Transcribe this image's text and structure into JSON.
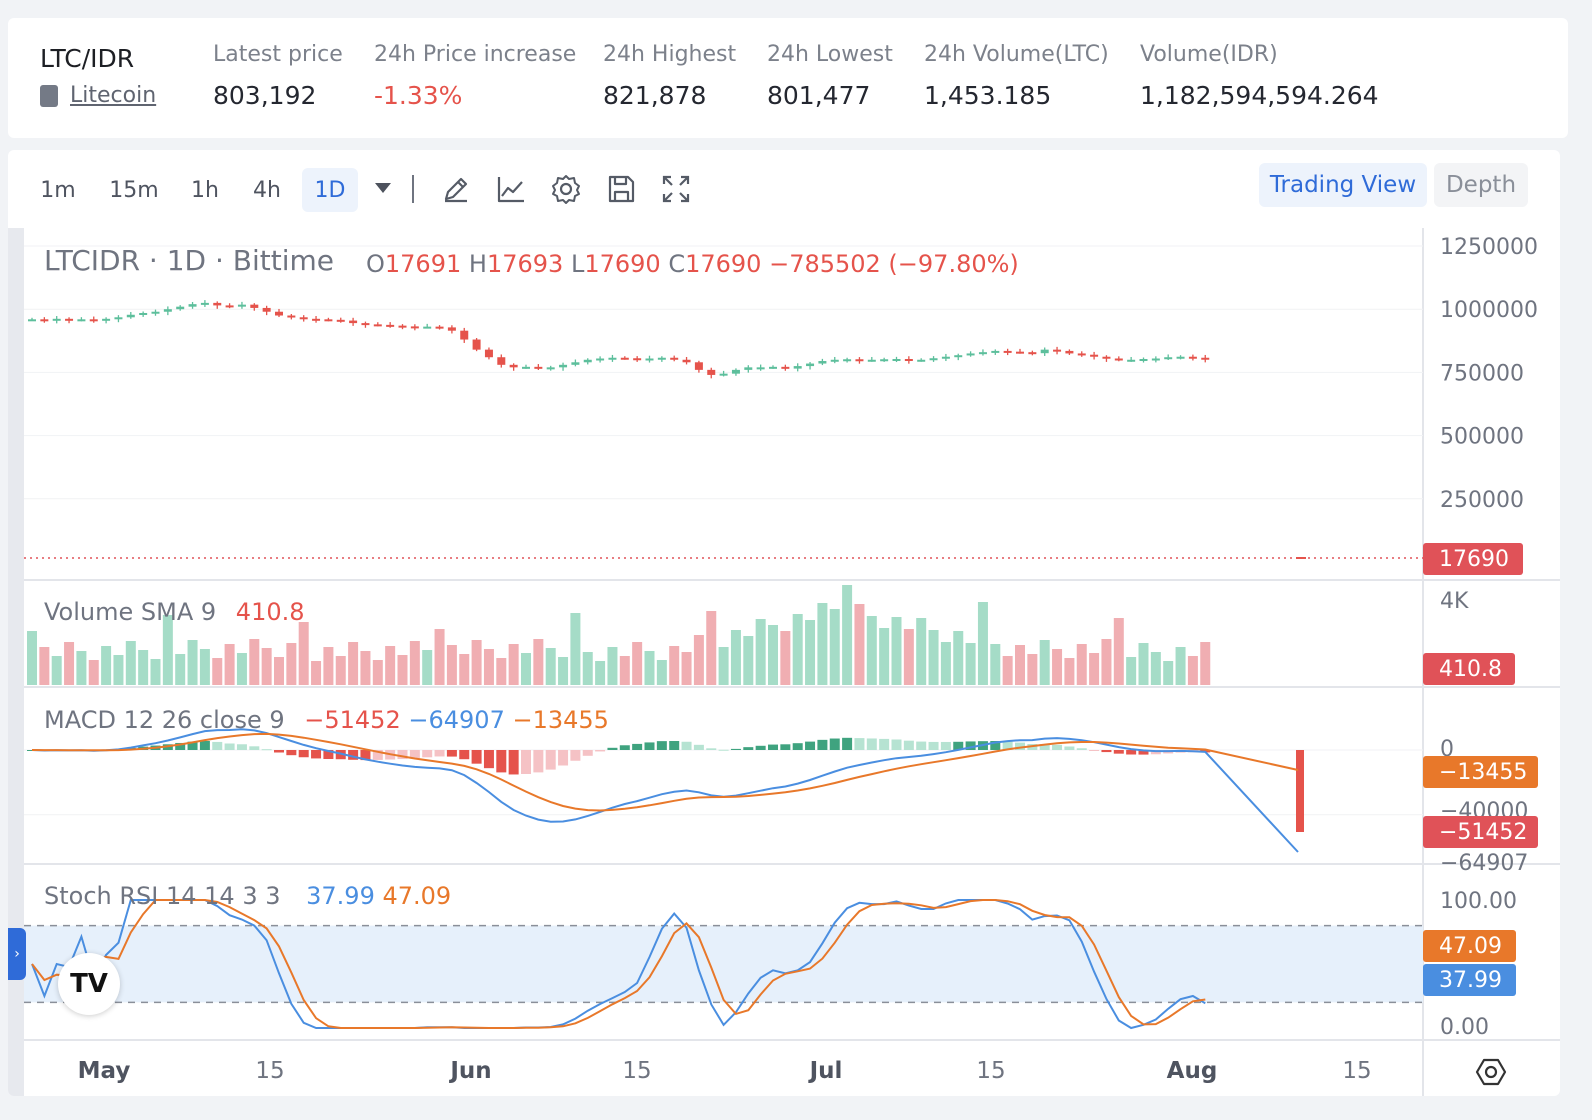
{
  "ticker": {
    "pair": "LTC/IDR",
    "coin_link": "Litecoin",
    "stats": [
      {
        "label": "Latest price",
        "value": "803,192",
        "tone": "neutral"
      },
      {
        "label": "24h Price increase",
        "value": "-1.33%",
        "tone": "down"
      },
      {
        "label": "24h Highest",
        "value": "821,878",
        "tone": "neutral"
      },
      {
        "label": "24h Lowest",
        "value": "801,477",
        "tone": "neutral"
      },
      {
        "label": "24h Volume(LTC)",
        "value": "1,453.185",
        "tone": "neutral"
      },
      {
        "label": "Volume(IDR)",
        "value": "1,182,594,594.264",
        "tone": "neutral"
      }
    ]
  },
  "toolbar": {
    "timeframes": [
      "1m",
      "15m",
      "1h",
      "4h",
      "1D"
    ],
    "active_timeframe": "1D",
    "tools": [
      "pencil-icon",
      "indicator-icon",
      "gear-icon",
      "save-icon",
      "fullscreen-icon"
    ],
    "view_buttons": [
      "Trading View",
      "Depth"
    ],
    "active_view": "Trading View"
  },
  "price_legend": {
    "symbol": "LTCIDR · 1D · Bittime",
    "o_label": "O",
    "o_value": "17691",
    "h_label": "H",
    "h_value": "17693",
    "l_label": "L",
    "l_value": "17690",
    "c_label": "C",
    "c_value": "17690",
    "change": "−785502 (−97.80%)"
  },
  "volume_legend": {
    "name": "Volume SMA 9",
    "value": "410.8"
  },
  "macd_legend": {
    "name": "MACD 12 26 close 9",
    "v1": "−51452",
    "v2": "−64907",
    "v3": "−13455"
  },
  "stoch_legend": {
    "name": "Stoch RSI 14 14 3 3",
    "k": "37.99",
    "d": "47.09"
  },
  "price_axis": [
    "1250000",
    "1000000",
    "750000",
    "500000",
    "250000"
  ],
  "price_tag": "17690",
  "volume_axis": [
    "4K"
  ],
  "volume_tag": "410.8",
  "macd_axis": [
    "0",
    "−40000",
    "−64907"
  ],
  "macd_tags": {
    "signal": "−13455",
    "macd": "−51452"
  },
  "stoch_axis": [
    "100.00",
    "0.00"
  ],
  "stoch_tags": {
    "d": "47.09",
    "k": "37.99"
  },
  "time_axis": [
    "May",
    "15",
    "Jun",
    "15",
    "Jul",
    "15",
    "Aug",
    "15"
  ],
  "colors": {
    "up": "#5dbf9c",
    "down": "#e5534b",
    "macd_line": "#4a8ee0",
    "signal_line": "#e8782a"
  },
  "chart_data": {
    "type": "candlestick",
    "range": "May – Aug, daily",
    "price_ylim": [
      0,
      1250000
    ],
    "price_approx": [
      960000,
      955000,
      962000,
      958000,
      960000,
      955000,
      962000,
      968000,
      978000,
      985000,
      990000,
      1000000,
      1010000,
      1020000,
      1025000,
      1015000,
      1010000,
      1018000,
      1005000,
      990000,
      975000,
      968000,
      962000,
      960000,
      958000,
      955000,
      945000,
      940000,
      938000,
      935000,
      932000,
      930000,
      931000,
      928000,
      915000,
      880000,
      840000,
      810000,
      780000,
      770000,
      772000,
      768000,
      770000,
      780000,
      790000,
      800000,
      805000,
      808000,
      806000,
      800000,
      805000,
      808000,
      800000,
      790000,
      760000,
      740000,
      745000,
      760000,
      770000,
      770000,
      772000,
      765000,
      775000,
      785000,
      795000,
      800000,
      802000,
      798000,
      800000,
      802000,
      803000,
      798000,
      800000,
      806000,
      812000,
      818000,
      825000,
      830000,
      835000,
      832000,
      830000,
      826000,
      840000,
      835000,
      825000,
      820000,
      812000,
      805000,
      800000,
      800000,
      803000,
      805000,
      810000,
      812000,
      808000,
      803192
    ],
    "stoch_levels": [
      20,
      80
    ]
  }
}
